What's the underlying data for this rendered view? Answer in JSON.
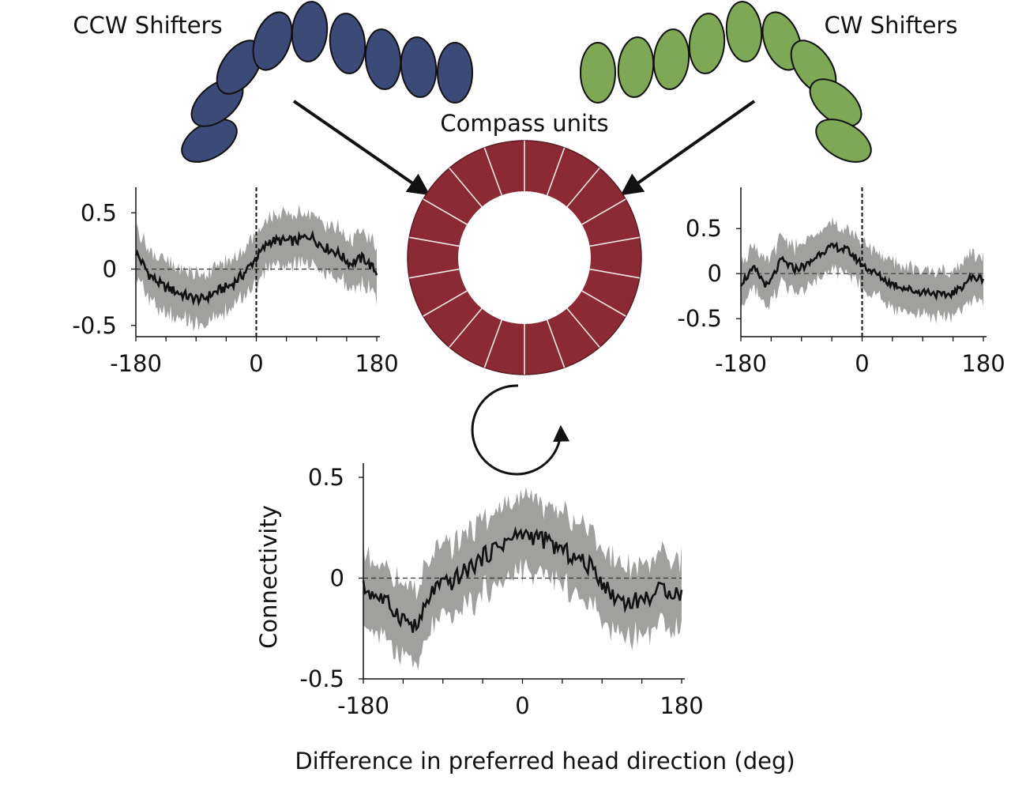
{
  "labels": {
    "ccw": "CCW Shifters",
    "cw": "CW Shifters",
    "compass": "Compass units",
    "ylabel": "Connectivity",
    "xlabel": "Difference in preferred head direction (deg)"
  },
  "colors": {
    "ccw_units": "#3c4a78",
    "cw_units": "#7ea855",
    "compass_ring": "#8b2a35",
    "band": "#8f918e",
    "line": "#111111"
  },
  "chart_data": [
    {
      "type": "line",
      "id": "ccw",
      "xlim": [
        -180,
        180
      ],
      "ylim": [
        -0.6,
        0.6
      ],
      "xticks": [
        "-180",
        "0",
        "180"
      ],
      "yticks": [
        "0.5",
        "0",
        "-0.5"
      ],
      "x": [
        -180,
        -160,
        -140,
        -120,
        -100,
        -80,
        -60,
        -40,
        -20,
        0,
        20,
        40,
        60,
        80,
        100,
        120,
        140,
        160,
        180
      ],
      "y": [
        0.15,
        -0.05,
        -0.15,
        -0.2,
        -0.25,
        -0.27,
        -0.2,
        -0.15,
        -0.05,
        0.1,
        0.25,
        0.25,
        0.25,
        0.3,
        0.2,
        0.15,
        0.05,
        0.1,
        -0.03
      ],
      "band_half_width": 0.22
    },
    {
      "type": "line",
      "id": "cw",
      "xlim": [
        -180,
        180
      ],
      "ylim": [
        -0.7,
        0.8
      ],
      "xticks": [
        "-180",
        "0",
        "180"
      ],
      "yticks": [
        "0.5",
        "0",
        "-0.5"
      ],
      "x": [
        -180,
        -160,
        -140,
        -120,
        -100,
        -80,
        -60,
        -40,
        -20,
        0,
        20,
        40,
        60,
        80,
        100,
        120,
        140,
        160,
        180
      ],
      "y": [
        -0.1,
        0.05,
        -0.15,
        0.15,
        0.05,
        0.1,
        0.25,
        0.3,
        0.25,
        0.1,
        0.0,
        -0.1,
        -0.15,
        -0.2,
        -0.2,
        -0.25,
        -0.2,
        -0.05,
        -0.05
      ],
      "band_half_width": 0.25
    },
    {
      "type": "line",
      "id": "compass",
      "xlim": [
        -180,
        180
      ],
      "ylim": [
        -0.5,
        0.5
      ],
      "xticks": [
        "-180",
        "0",
        "180"
      ],
      "yticks": [
        "0.5",
        "0",
        "-0.5"
      ],
      "ylabel": "Connectivity",
      "xlabel": "Difference in preferred head direction (deg)",
      "x": [
        -180,
        -160,
        -140,
        -120,
        -100,
        -80,
        -60,
        -40,
        -20,
        0,
        20,
        40,
        60,
        80,
        100,
        120,
        140,
        160,
        180
      ],
      "y": [
        -0.05,
        -0.1,
        -0.18,
        -0.25,
        -0.05,
        -0.02,
        0.05,
        0.12,
        0.18,
        0.22,
        0.2,
        0.15,
        0.1,
        0.05,
        -0.08,
        -0.12,
        -0.1,
        -0.05,
        -0.08
      ],
      "band_half_width": 0.18
    }
  ]
}
